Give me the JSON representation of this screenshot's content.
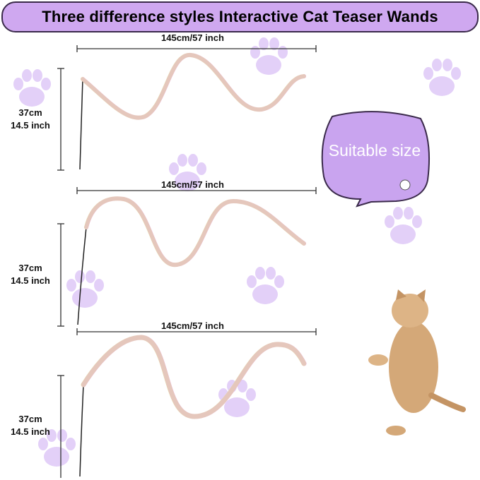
{
  "title": "Three difference styles Interactive Cat Teaser Wands",
  "wands": [
    {
      "length_label": "145cm/57 inch",
      "height_cm": "37cm",
      "height_inch": "14.5 inch"
    },
    {
      "length_label": "145cm/57 inch",
      "height_cm": "37cm",
      "height_inch": "14.5 inch"
    },
    {
      "length_label": "145cm/57 inch",
      "height_cm": "37cm",
      "height_inch": "14.5 inch"
    }
  ],
  "bubble_text": "Suitable size",
  "colors": {
    "accent": "#cfa8f0",
    "bubble": "#c9a4ef",
    "paw": "#e6d6f8"
  }
}
